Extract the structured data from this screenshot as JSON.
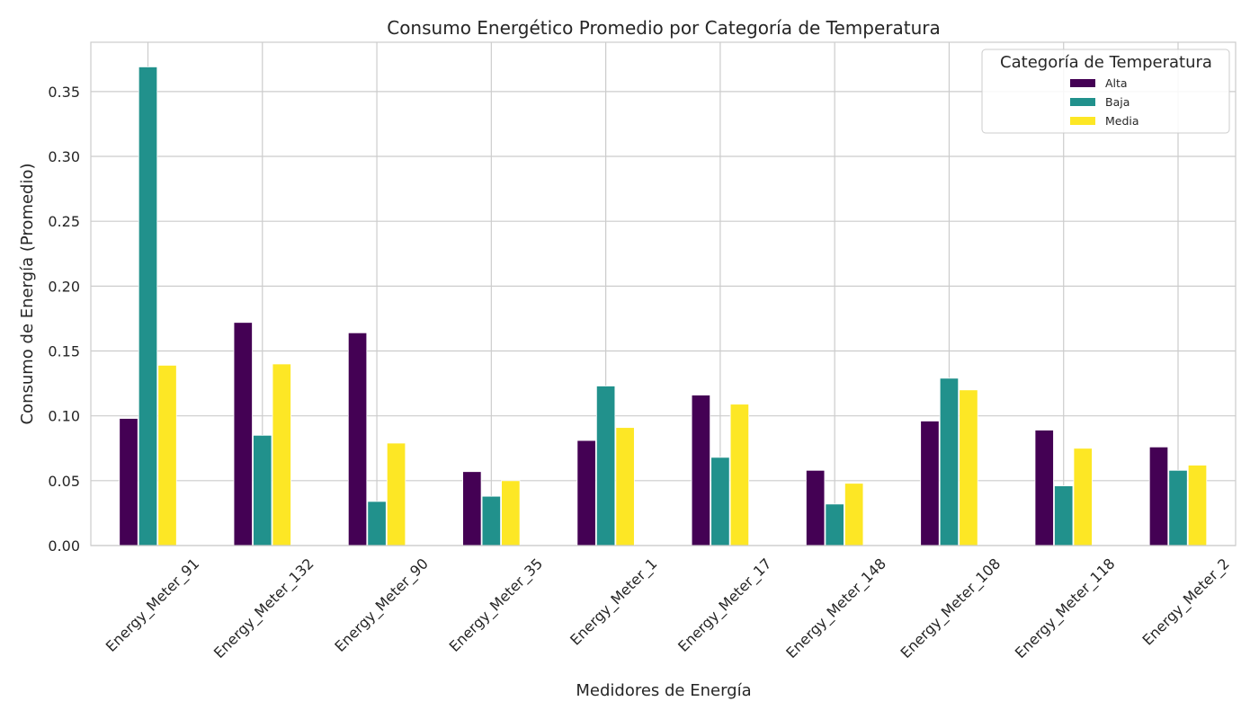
{
  "chart_data": {
    "type": "bar",
    "title": "Consumo Energético Promedio por Categoría de Temperatura",
    "xlabel": "Medidores de Energía",
    "ylabel": "Consumo de Energía (Promedio)",
    "categories": [
      "Energy_Meter_91",
      "Energy_Meter_132",
      "Energy_Meter_90",
      "Energy_Meter_35",
      "Energy_Meter_1",
      "Energy_Meter_17",
      "Energy_Meter_148",
      "Energy_Meter_108",
      "Energy_Meter_118",
      "Energy_Meter_2"
    ],
    "series": [
      {
        "name": "Alta",
        "color": "#440154",
        "values": [
          0.098,
          0.172,
          0.164,
          0.057,
          0.081,
          0.116,
          0.058,
          0.096,
          0.089,
          0.076
        ]
      },
      {
        "name": "Baja",
        "color": "#21918c",
        "values": [
          0.369,
          0.085,
          0.034,
          0.038,
          0.123,
          0.068,
          0.032,
          0.129,
          0.046,
          0.058
        ]
      },
      {
        "name": "Media",
        "color": "#fde725",
        "values": [
          0.139,
          0.14,
          0.079,
          0.05,
          0.091,
          0.109,
          0.048,
          0.12,
          0.075,
          0.062
        ]
      }
    ],
    "ylim": [
      0,
      0.388
    ],
    "yticks": [
      "0.00",
      "0.05",
      "0.10",
      "0.15",
      "0.20",
      "0.25",
      "0.30",
      "0.35"
    ],
    "grid": true,
    "legend": {
      "title": "Categoría de Temperatura",
      "placement": "top-right"
    }
  }
}
